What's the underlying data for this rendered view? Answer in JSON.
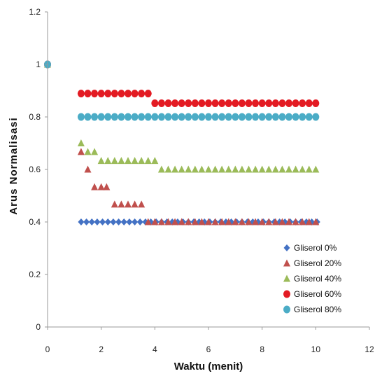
{
  "chart_data": {
    "type": "scatter",
    "xlabel": "Waktu (menit)",
    "ylabel": "Arus Normalisasi",
    "xlim": [
      0,
      12
    ],
    "ylim": [
      0,
      1.2
    ],
    "xticks": [
      "0",
      "2",
      "4",
      "6",
      "8",
      "10",
      "12"
    ],
    "yticks": [
      "0",
      "0.2",
      "0.4",
      "0.6",
      "0.8",
      "1",
      "1.2"
    ],
    "grid": false,
    "legend_position": "bottom-right",
    "series": [
      {
        "name": "Gliserol 0%",
        "marker": "diamond",
        "color": "#4472c4",
        "points": [
          [
            0,
            1
          ],
          [
            1.25,
            0.4
          ],
          [
            1.45,
            0.4
          ],
          [
            1.65,
            0.4
          ],
          [
            1.85,
            0.4
          ],
          [
            2.05,
            0.4
          ],
          [
            2.25,
            0.4
          ],
          [
            2.45,
            0.4
          ],
          [
            2.65,
            0.4
          ],
          [
            2.85,
            0.4
          ],
          [
            3.05,
            0.4
          ],
          [
            3.25,
            0.4
          ],
          [
            3.45,
            0.4
          ],
          [
            3.65,
            0.4
          ],
          [
            3.85,
            0.4
          ],
          [
            4.05,
            0.4
          ],
          [
            4.25,
            0.4
          ],
          [
            4.45,
            0.4
          ],
          [
            4.65,
            0.4
          ],
          [
            4.85,
            0.4
          ],
          [
            5.05,
            0.4
          ],
          [
            5.25,
            0.4
          ],
          [
            5.45,
            0.4
          ],
          [
            5.65,
            0.4
          ],
          [
            5.85,
            0.4
          ],
          [
            6.05,
            0.4
          ],
          [
            6.25,
            0.4
          ],
          [
            6.45,
            0.4
          ],
          [
            6.65,
            0.4
          ],
          [
            6.85,
            0.4
          ],
          [
            7.05,
            0.4
          ],
          [
            7.25,
            0.4
          ],
          [
            7.45,
            0.4
          ],
          [
            7.65,
            0.4
          ],
          [
            7.85,
            0.4
          ],
          [
            8.05,
            0.4
          ],
          [
            8.25,
            0.4
          ],
          [
            8.45,
            0.4
          ],
          [
            8.65,
            0.4
          ],
          [
            8.85,
            0.4
          ],
          [
            9.05,
            0.4
          ],
          [
            9.25,
            0.4
          ],
          [
            9.45,
            0.4
          ],
          [
            9.65,
            0.4
          ],
          [
            9.85,
            0.4
          ],
          [
            10.05,
            0.4
          ]
        ]
      },
      {
        "name": "Gliserol 20%",
        "marker": "triangle",
        "color": "#c0504d",
        "points": [
          [
            0,
            1
          ],
          [
            1.25,
            0.667
          ],
          [
            1.5,
            0.6
          ],
          [
            1.75,
            0.533
          ],
          [
            2.0,
            0.533
          ],
          [
            2.2,
            0.533
          ],
          [
            2.5,
            0.467
          ],
          [
            2.75,
            0.467
          ],
          [
            3.0,
            0.467
          ],
          [
            3.25,
            0.467
          ],
          [
            3.5,
            0.467
          ],
          [
            3.75,
            0.4
          ],
          [
            4.0,
            0.4
          ],
          [
            4.25,
            0.4
          ],
          [
            4.5,
            0.4
          ],
          [
            4.75,
            0.4
          ],
          [
            5.0,
            0.4
          ],
          [
            5.25,
            0.4
          ],
          [
            5.5,
            0.4
          ],
          [
            5.75,
            0.4
          ],
          [
            6.0,
            0.4
          ],
          [
            6.25,
            0.4
          ],
          [
            6.5,
            0.4
          ],
          [
            6.75,
            0.4
          ],
          [
            7.0,
            0.4
          ],
          [
            7.25,
            0.4
          ],
          [
            7.5,
            0.4
          ],
          [
            7.75,
            0.4
          ],
          [
            8.0,
            0.4
          ],
          [
            8.25,
            0.4
          ],
          [
            8.5,
            0.4
          ],
          [
            8.75,
            0.4
          ],
          [
            9.0,
            0.4
          ],
          [
            9.25,
            0.4
          ],
          [
            9.5,
            0.4
          ],
          [
            9.75,
            0.4
          ],
          [
            10.0,
            0.4
          ]
        ]
      },
      {
        "name": "Gliserol 40%",
        "marker": "triangle",
        "color": "#9bbb59",
        "points": [
          [
            0,
            1
          ],
          [
            1.25,
            0.7
          ],
          [
            1.5,
            0.667
          ],
          [
            1.75,
            0.667
          ],
          [
            2.0,
            0.633
          ],
          [
            2.25,
            0.633
          ],
          [
            2.5,
            0.633
          ],
          [
            2.75,
            0.633
          ],
          [
            3.0,
            0.633
          ],
          [
            3.25,
            0.633
          ],
          [
            3.5,
            0.633
          ],
          [
            3.75,
            0.633
          ],
          [
            4.0,
            0.633
          ],
          [
            4.25,
            0.6
          ],
          [
            4.5,
            0.6
          ],
          [
            4.75,
            0.6
          ],
          [
            5.0,
            0.6
          ],
          [
            5.25,
            0.6
          ],
          [
            5.5,
            0.6
          ],
          [
            5.75,
            0.6
          ],
          [
            6.0,
            0.6
          ],
          [
            6.25,
            0.6
          ],
          [
            6.5,
            0.6
          ],
          [
            6.75,
            0.6
          ],
          [
            7.0,
            0.6
          ],
          [
            7.25,
            0.6
          ],
          [
            7.5,
            0.6
          ],
          [
            7.75,
            0.6
          ],
          [
            8.0,
            0.6
          ],
          [
            8.25,
            0.6
          ],
          [
            8.5,
            0.6
          ],
          [
            8.75,
            0.6
          ],
          [
            9.0,
            0.6
          ],
          [
            9.25,
            0.6
          ],
          [
            9.5,
            0.6
          ],
          [
            9.75,
            0.6
          ],
          [
            10.0,
            0.6
          ]
        ]
      },
      {
        "name": "Gliserol 60%",
        "marker": "circle",
        "color": "#e31b23",
        "points": [
          [
            0,
            1
          ],
          [
            1.25,
            0.889
          ],
          [
            1.5,
            0.889
          ],
          [
            1.75,
            0.889
          ],
          [
            2.0,
            0.889
          ],
          [
            2.25,
            0.889
          ],
          [
            2.5,
            0.889
          ],
          [
            2.75,
            0.889
          ],
          [
            3.0,
            0.889
          ],
          [
            3.25,
            0.889
          ],
          [
            3.5,
            0.889
          ],
          [
            3.75,
            0.889
          ],
          [
            4.0,
            0.852
          ],
          [
            4.25,
            0.852
          ],
          [
            4.5,
            0.852
          ],
          [
            4.75,
            0.852
          ],
          [
            5.0,
            0.852
          ],
          [
            5.25,
            0.852
          ],
          [
            5.5,
            0.852
          ],
          [
            5.75,
            0.852
          ],
          [
            6.0,
            0.852
          ],
          [
            6.25,
            0.852
          ],
          [
            6.5,
            0.852
          ],
          [
            6.75,
            0.852
          ],
          [
            7.0,
            0.852
          ],
          [
            7.25,
            0.852
          ],
          [
            7.5,
            0.852
          ],
          [
            7.75,
            0.852
          ],
          [
            8.0,
            0.852
          ],
          [
            8.25,
            0.852
          ],
          [
            8.5,
            0.852
          ],
          [
            8.75,
            0.852
          ],
          [
            9.0,
            0.852
          ],
          [
            9.25,
            0.852
          ],
          [
            9.5,
            0.852
          ],
          [
            9.75,
            0.852
          ],
          [
            10.0,
            0.852
          ]
        ]
      },
      {
        "name": "Gliserol 80%",
        "marker": "circle",
        "color": "#4bacc6",
        "points": [
          [
            0,
            1
          ],
          [
            1.25,
            0.8
          ],
          [
            1.5,
            0.8
          ],
          [
            1.75,
            0.8
          ],
          [
            2.0,
            0.8
          ],
          [
            2.25,
            0.8
          ],
          [
            2.5,
            0.8
          ],
          [
            2.75,
            0.8
          ],
          [
            3.0,
            0.8
          ],
          [
            3.25,
            0.8
          ],
          [
            3.5,
            0.8
          ],
          [
            3.75,
            0.8
          ],
          [
            4.0,
            0.8
          ],
          [
            4.25,
            0.8
          ],
          [
            4.5,
            0.8
          ],
          [
            4.75,
            0.8
          ],
          [
            5.0,
            0.8
          ],
          [
            5.25,
            0.8
          ],
          [
            5.5,
            0.8
          ],
          [
            5.75,
            0.8
          ],
          [
            6.0,
            0.8
          ],
          [
            6.25,
            0.8
          ],
          [
            6.5,
            0.8
          ],
          [
            6.75,
            0.8
          ],
          [
            7.0,
            0.8
          ],
          [
            7.25,
            0.8
          ],
          [
            7.5,
            0.8
          ],
          [
            7.75,
            0.8
          ],
          [
            8.0,
            0.8
          ],
          [
            8.25,
            0.8
          ],
          [
            8.5,
            0.8
          ],
          [
            8.75,
            0.8
          ],
          [
            9.0,
            0.8
          ],
          [
            9.25,
            0.8
          ],
          [
            9.5,
            0.8
          ],
          [
            9.75,
            0.8
          ],
          [
            10.0,
            0.8
          ]
        ]
      }
    ]
  }
}
